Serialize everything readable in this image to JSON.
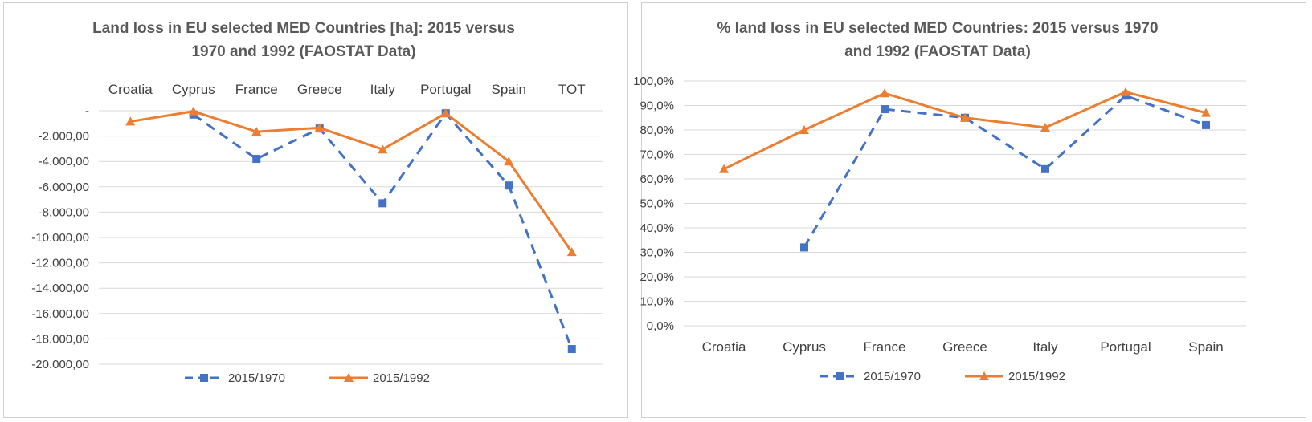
{
  "colors": {
    "series1": "#4472c4",
    "series2": "#ed7d31",
    "grid": "#d9d9d9",
    "text": "#404040",
    "title": "#595959"
  },
  "chart_data": [
    {
      "type": "line",
      "title_lines": [
        "Land loss in EU selected MED Countries [ha]: 2015 versus",
        "1970 and 1992 (FAOSTAT Data)"
      ],
      "categories": [
        "Croatia",
        "Cyprus",
        "France",
        "Greece",
        "Italy",
        "Portugal",
        "Spain",
        "TOT"
      ],
      "category_axis_position": "top",
      "yticks": [
        0,
        -2000,
        -4000,
        -6000,
        -8000,
        -10000,
        -12000,
        -14000,
        -16000,
        -18000,
        -20000
      ],
      "ytick_labels": [
        "-",
        "-2.000,00",
        "-4.000,00",
        "-6.000,00",
        "-8.000,00",
        "-10.000,00",
        "-12.000,00",
        "-14.000,00",
        "-16.000,00",
        "-18.000,00",
        "-20.000,00"
      ],
      "ylim": [
        -20000,
        0
      ],
      "grid": true,
      "legend": "bottom",
      "series": [
        {
          "name": "2015/1970",
          "style": "dashed",
          "marker": "square",
          "values": [
            null,
            -300,
            -3800,
            -1400,
            -7300,
            -200,
            -5900,
            -18800
          ]
        },
        {
          "name": "2015/1992",
          "style": "solid",
          "marker": "triangle",
          "values": [
            -850,
            -50,
            -1650,
            -1350,
            -3050,
            -200,
            -4000,
            -11150
          ]
        }
      ]
    },
    {
      "type": "line",
      "title_lines": [
        "% land loss in EU selected MED Countries: 2015 versus 1970",
        "and 1992 (FAOSTAT Data)"
      ],
      "categories": [
        "Croatia",
        "Cyprus",
        "France",
        "Greece",
        "Italy",
        "Portugal",
        "Spain"
      ],
      "category_axis_position": "bottom",
      "yticks": [
        0,
        10,
        20,
        30,
        40,
        50,
        60,
        70,
        80,
        90,
        100
      ],
      "ytick_labels": [
        "0,0%",
        "10,0%",
        "20,0%",
        "30,0%",
        "40,0%",
        "50,0%",
        "60,0%",
        "70,0%",
        "80,0%",
        "90,0%",
        "100,0%"
      ],
      "ylim": [
        0,
        100
      ],
      "grid": true,
      "legend": "bottom",
      "series": [
        {
          "name": "2015/1970",
          "style": "dashed",
          "marker": "square",
          "values": [
            null,
            32,
            88.5,
            85,
            64,
            94,
            82
          ]
        },
        {
          "name": "2015/1992",
          "style": "solid",
          "marker": "triangle",
          "values": [
            64,
            80,
            95,
            85,
            81,
            95.5,
            87
          ]
        }
      ]
    }
  ]
}
